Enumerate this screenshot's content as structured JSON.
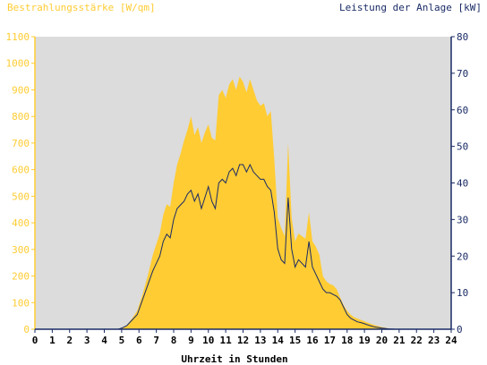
{
  "chart_data": {
    "type": "area",
    "title_left": "Bestrahlungsstärke [W/qm]",
    "title_right": "Leistung der Anlage [kW]",
    "xlabel": "Uhrzeit in Stunden",
    "xlim": [
      0,
      24
    ],
    "x_ticks": [
      "0",
      "1",
      "2",
      "3",
      "4",
      "5",
      "6",
      "7",
      "8",
      "9",
      "10",
      "11",
      "12",
      "13",
      "14",
      "15",
      "16",
      "17",
      "18",
      "19",
      "20",
      "21",
      "22",
      "23",
      "24"
    ],
    "y_left": {
      "lim": [
        0,
        1100
      ],
      "ticks": [
        "0",
        "100",
        "200",
        "300",
        "400",
        "500",
        "600",
        "700",
        "800",
        "900",
        "1000",
        "1100"
      ],
      "color": "#ffcc33"
    },
    "y_right": {
      "lim": [
        0,
        80
      ],
      "ticks": [
        "0",
        "10",
        "20",
        "30",
        "40",
        "50",
        "60",
        "70",
        "80"
      ],
      "color": "#1a2b66"
    },
    "grid": false,
    "plot_background": "#dcdcdc",
    "series": [
      {
        "axis": "left",
        "kind": "area",
        "color": "#ffcc33",
        "x": [
          0,
          4.8,
          5.0,
          5.3,
          5.6,
          5.9,
          6.2,
          6.5,
          6.8,
          7.0,
          7.2,
          7.4,
          7.6,
          7.8,
          8.0,
          8.2,
          8.4,
          8.6,
          8.8,
          9.0,
          9.2,
          9.4,
          9.6,
          9.8,
          10.0,
          10.2,
          10.4,
          10.6,
          10.8,
          11.0,
          11.2,
          11.4,
          11.6,
          11.8,
          12.0,
          12.2,
          12.4,
          12.6,
          12.8,
          13.0,
          13.2,
          13.4,
          13.6,
          13.8,
          14.0,
          14.2,
          14.4,
          14.6,
          14.8,
          15.0,
          15.2,
          15.4,
          15.6,
          15.8,
          16.0,
          16.2,
          16.4,
          16.6,
          16.8,
          17.0,
          17.2,
          17.4,
          17.6,
          17.8,
          18.0,
          18.2,
          18.4,
          18.6,
          18.8,
          19.0,
          19.3,
          19.6,
          20.0,
          20.4,
          20.8,
          21.0,
          24
        ],
        "y": [
          0,
          0,
          5,
          15,
          40,
          70,
          130,
          200,
          280,
          320,
          360,
          430,
          470,
          460,
          550,
          620,
          660,
          710,
          750,
          800,
          730,
          760,
          700,
          740,
          770,
          720,
          710,
          880,
          900,
          870,
          920,
          940,
          900,
          950,
          930,
          890,
          940,
          900,
          860,
          840,
          850,
          800,
          820,
          640,
          420,
          380,
          350,
          700,
          420,
          330,
          360,
          350,
          340,
          440,
          330,
          310,
          280,
          200,
          180,
          170,
          165,
          150,
          120,
          90,
          70,
          55,
          45,
          40,
          35,
          30,
          22,
          15,
          8,
          3,
          0,
          0,
          0
        ]
      },
      {
        "axis": "right",
        "kind": "line",
        "color": "#1a2b66",
        "x": [
          0,
          4.8,
          5.0,
          5.3,
          5.6,
          5.9,
          6.2,
          6.5,
          6.8,
          7.0,
          7.2,
          7.4,
          7.6,
          7.8,
          8.0,
          8.2,
          8.4,
          8.6,
          8.8,
          9.0,
          9.2,
          9.4,
          9.6,
          9.8,
          10.0,
          10.2,
          10.4,
          10.6,
          10.8,
          11.0,
          11.2,
          11.4,
          11.6,
          11.8,
          12.0,
          12.2,
          12.4,
          12.6,
          12.8,
          13.0,
          13.2,
          13.4,
          13.6,
          13.8,
          14.0,
          14.2,
          14.4,
          14.6,
          14.8,
          15.0,
          15.2,
          15.4,
          15.6,
          15.8,
          16.0,
          16.2,
          16.4,
          16.6,
          16.8,
          17.0,
          17.2,
          17.4,
          17.6,
          17.8,
          18.0,
          18.2,
          18.4,
          18.6,
          18.8,
          19.0,
          19.3,
          19.6,
          20.0,
          20.4,
          20.8,
          21.0,
          24
        ],
        "y": [
          0,
          0,
          0.3,
          1,
          2.5,
          4,
          8,
          12,
          16,
          18,
          20,
          24,
          26,
          25,
          30,
          33,
          34,
          35,
          37,
          38,
          35,
          37,
          33,
          36,
          39,
          35,
          33,
          40,
          41,
          40,
          43,
          44,
          42,
          45,
          45,
          43,
          45,
          43,
          42,
          41,
          41,
          39,
          38,
          32,
          22,
          19,
          18,
          36,
          22,
          17,
          19,
          18,
          17,
          24,
          17,
          15,
          13,
          11,
          10,
          10,
          9.5,
          9,
          8,
          6,
          4,
          3,
          2.5,
          2,
          1.8,
          1.5,
          1,
          0.6,
          0.3,
          0.1,
          0,
          0,
          0
        ]
      }
    ]
  }
}
